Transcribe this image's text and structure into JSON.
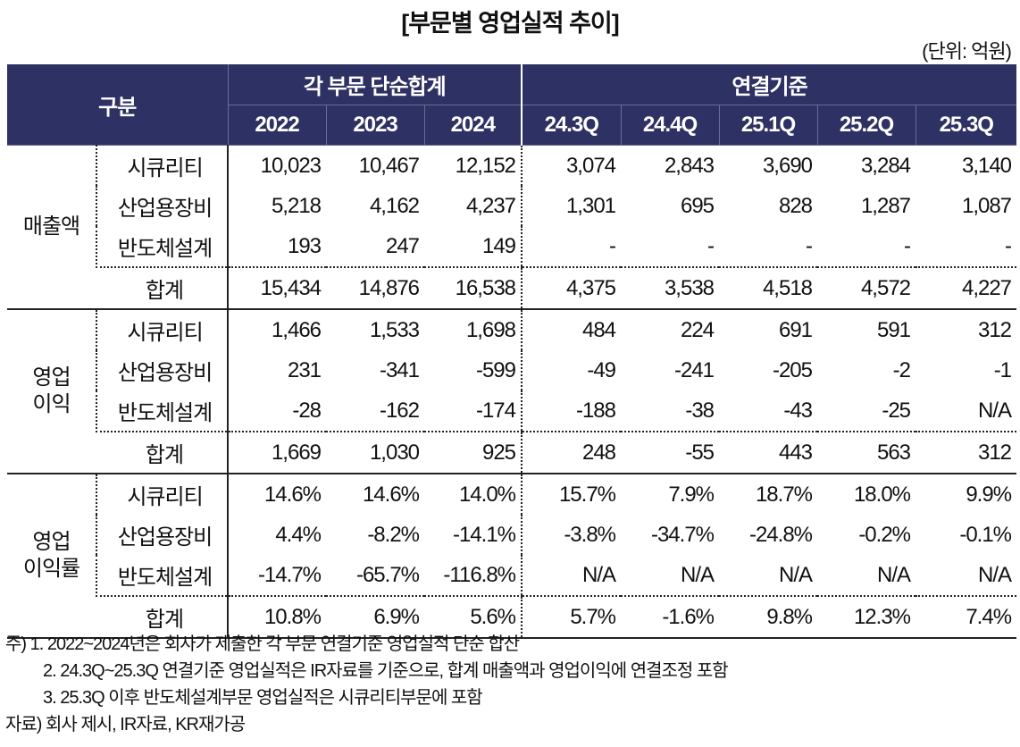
{
  "title": "[부문별 영업실적 추이]",
  "unit": "(단위: 억원)",
  "header": {
    "category": "구분",
    "group1": "각 부문 단순합계",
    "group2": "연결기준",
    "columns": [
      "2022",
      "2023",
      "2024",
      "24.3Q",
      "24.4Q",
      "25.1Q",
      "25.2Q",
      "25.3Q"
    ]
  },
  "sections": [
    {
      "label": "매출액",
      "rows": [
        {
          "name": "시큐리티",
          "values": [
            "10,023",
            "10,467",
            "12,152",
            "3,074",
            "2,843",
            "3,690",
            "3,284",
            "3,140"
          ]
        },
        {
          "name": "산업용장비",
          "values": [
            "5,218",
            "4,162",
            "4,237",
            "1,301",
            "695",
            "828",
            "1,287",
            "1,087"
          ]
        },
        {
          "name": "반도체설계",
          "values": [
            "193",
            "247",
            "149",
            "-",
            "-",
            "-",
            "-",
            "-"
          ]
        },
        {
          "name": "합계",
          "values": [
            "15,434",
            "14,876",
            "16,538",
            "4,375",
            "3,538",
            "4,518",
            "4,572",
            "4,227"
          ]
        }
      ]
    },
    {
      "label": "영업\n이익",
      "rows": [
        {
          "name": "시큐리티",
          "values": [
            "1,466",
            "1,533",
            "1,698",
            "484",
            "224",
            "691",
            "591",
            "312"
          ]
        },
        {
          "name": "산업용장비",
          "values": [
            "231",
            "-341",
            "-599",
            "-49",
            "-241",
            "-205",
            "-2",
            "-1"
          ]
        },
        {
          "name": "반도체설계",
          "values": [
            "-28",
            "-162",
            "-174",
            "-188",
            "-38",
            "-43",
            "-25",
            "N/A"
          ]
        },
        {
          "name": "합계",
          "values": [
            "1,669",
            "1,030",
            "925",
            "248",
            "-55",
            "443",
            "563",
            "312"
          ]
        }
      ]
    },
    {
      "label": "영업\n이익률",
      "rows": [
        {
          "name": "시큐리티",
          "values": [
            "14.6%",
            "14.6%",
            "14.0%",
            "15.7%",
            "7.9%",
            "18.7%",
            "18.0%",
            "9.9%"
          ]
        },
        {
          "name": "산업용장비",
          "values": [
            "4.4%",
            "-8.2%",
            "-14.1%",
            "-3.8%",
            "-34.7%",
            "-24.8%",
            "-0.2%",
            "-0.1%"
          ]
        },
        {
          "name": "반도체설계",
          "values": [
            "-14.7%",
            "-65.7%",
            "-116.8%",
            "N/A",
            "N/A",
            "N/A",
            "N/A",
            "N/A"
          ]
        },
        {
          "name": "합계",
          "values": [
            "10.8%",
            "6.9%",
            "5.6%",
            "5.7%",
            "-1.6%",
            "9.8%",
            "12.3%",
            "7.4%"
          ]
        }
      ]
    }
  ],
  "notes": [
    "주) 1. 2022~2024년은 회사가 제출한 각 부문 연결기준 영업실적 단순 합산",
    "2. 24.3Q~25.3Q 연결기준 영업실적은 IR자료를 기준으로, 합계 매출액과 영업이익에 연결조정 포함",
    "3. 25.3Q 이후 반도체설계부문 영업실적은 시큐리티부문에 포함",
    "자료) 회사 제시, IR자료, KR재가공"
  ]
}
